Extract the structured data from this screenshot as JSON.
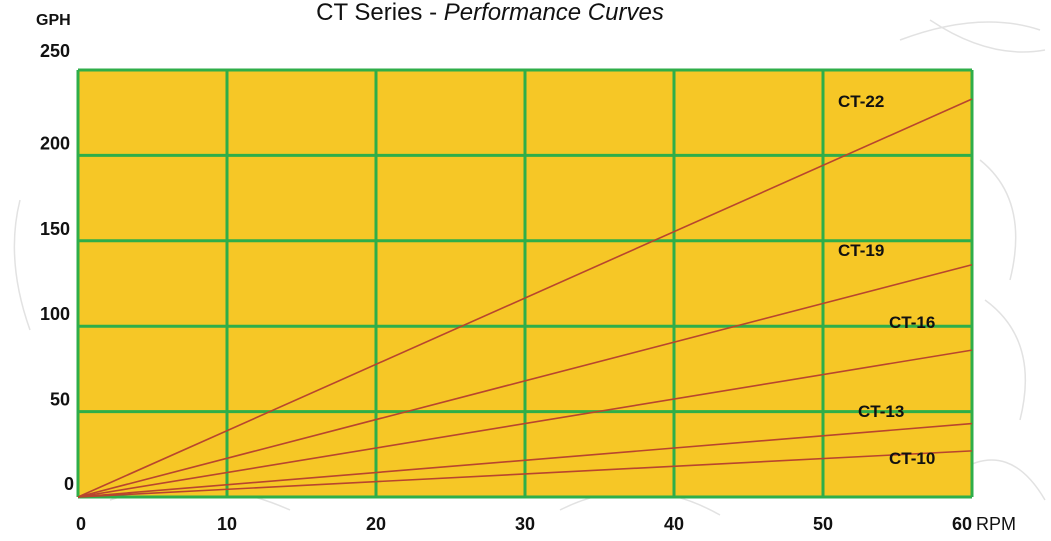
{
  "chart_data": {
    "type": "line",
    "title_prefix": "CT Series - ",
    "title_emphasis": "Performance Curves",
    "ylabel": "GPH",
    "xlabel": "RPM",
    "xlim": [
      0,
      60
    ],
    "ylim": [
      0,
      250
    ],
    "x_ticks": [
      0,
      10,
      20,
      30,
      40,
      50,
      60
    ],
    "y_ticks": [
      0,
      50,
      100,
      150,
      200,
      250
    ],
    "grid": true,
    "colors": {
      "plot_background": "#f6c726",
      "grid": "#2fae49",
      "lines": "#b8452e",
      "text": "#111111",
      "page_background": "#ffffff"
    },
    "series": [
      {
        "name": "CT-22",
        "x": [
          0,
          60
        ],
        "y": [
          0,
          233
        ]
      },
      {
        "name": "CT-19",
        "x": [
          0,
          60
        ],
        "y": [
          0,
          136
        ]
      },
      {
        "name": "CT-16",
        "x": [
          0,
          60
        ],
        "y": [
          0,
          86
        ]
      },
      {
        "name": "CT-13",
        "x": [
          0,
          60
        ],
        "y": [
          0,
          43
        ]
      },
      {
        "name": "CT-10",
        "x": [
          0,
          60
        ],
        "y": [
          0,
          27
        ]
      }
    ]
  }
}
